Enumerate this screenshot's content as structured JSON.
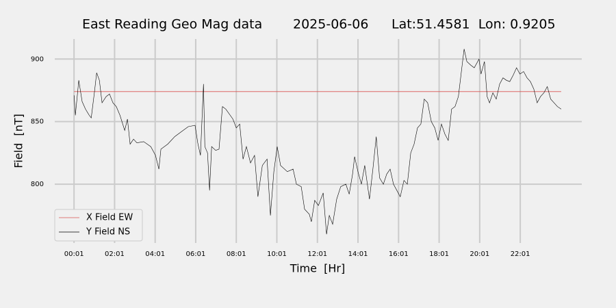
{
  "chart_data": {
    "type": "line",
    "title": "East Reading Geo Mag data",
    "date": "2025-06-06",
    "location": "Lat:51.4581  Lon: 0.9205",
    "xlabel": "Time  [Hr]",
    "ylabel": "Field  [nT]",
    "xlim": [
      -56,
      1503
    ],
    "ylim": [
      753,
      916
    ],
    "xticks": [
      {
        "value": 1,
        "label": "00:01"
      },
      {
        "value": 121,
        "label": "02:01"
      },
      {
        "value": 241,
        "label": "04:01"
      },
      {
        "value": 361,
        "label": "06:01"
      },
      {
        "value": 481,
        "label": "08:01"
      },
      {
        "value": 601,
        "label": "10:01"
      },
      {
        "value": 721,
        "label": "12:01"
      },
      {
        "value": 841,
        "label": "14:01"
      },
      {
        "value": 961,
        "label": "16:01"
      },
      {
        "value": 1081,
        "label": "18:01"
      },
      {
        "value": 1201,
        "label": "20:01"
      },
      {
        "value": 1321,
        "label": "22:01"
      }
    ],
    "yticks": [
      800,
      850,
      900
    ],
    "grid": true,
    "legend": "lower left",
    "series": [
      {
        "name": "X Field EW",
        "color": "#d9534f",
        "x": [
          1,
          1442
        ],
        "values": [
          874,
          874
        ]
      },
      {
        "name": "Y Field NS",
        "color": "#000000",
        "x": [
          1,
          5,
          15,
          25,
          35,
          46,
          52,
          62,
          68,
          76,
          84,
          96,
          106,
          116,
          126,
          137,
          151,
          159,
          167,
          177,
          187,
          207,
          228,
          242,
          252,
          258,
          278,
          299,
          319,
          339,
          359,
          367,
          375,
          384,
          388,
          396,
          402,
          408,
          420,
          430,
          440,
          450,
          471,
          481,
          491,
          501,
          511,
          523,
          535,
          545,
          558,
          572,
          582,
          592,
          602,
          612,
          632,
          649,
          659,
          673,
          683,
          697,
          703,
          713,
          724,
          738,
          748,
          756,
          766,
          778,
          790,
          805,
          815,
          825,
          831,
          841,
          851,
          861,
          875,
          885,
          895,
          905,
          916,
          926,
          936,
          946,
          956,
          966,
          977,
          987,
          997,
          1007,
          1017,
          1027,
          1037,
          1047,
          1058,
          1068,
          1078,
          1088,
          1098,
          1108,
          1118,
          1128,
          1138,
          1149,
          1155,
          1163,
          1175,
          1185,
          1199,
          1205,
          1215,
          1223,
          1230,
          1240,
          1250,
          1260,
          1270,
          1280,
          1290,
          1300,
          1310,
          1320,
          1331,
          1341,
          1351,
          1361,
          1371,
          1381,
          1391,
          1401,
          1411,
          1421,
          1431,
          1442
        ],
        "values": [
          871,
          855,
          883,
          866,
          860,
          855,
          853,
          875,
          889,
          883,
          865,
          870,
          872,
          865,
          862,
          855,
          843,
          852,
          832,
          836,
          833,
          834,
          830,
          823,
          812,
          828,
          832,
          838,
          842,
          846,
          847,
          833,
          823,
          880,
          830,
          825,
          795,
          830,
          827,
          828,
          862,
          860,
          852,
          845,
          848,
          820,
          830,
          817,
          823,
          790,
          815,
          820,
          775,
          810,
          830,
          815,
          810,
          812,
          800,
          798,
          780,
          776,
          770,
          787,
          783,
          793,
          760,
          775,
          768,
          788,
          798,
          800,
          792,
          808,
          822,
          810,
          800,
          815,
          788,
          812,
          838,
          805,
          800,
          808,
          812,
          800,
          795,
          790,
          803,
          800,
          825,
          832,
          845,
          848,
          868,
          865,
          850,
          845,
          835,
          848,
          840,
          835,
          860,
          862,
          870,
          895,
          908,
          898,
          895,
          893,
          900,
          888,
          898,
          870,
          865,
          873,
          868,
          880,
          885,
          883,
          882,
          887,
          893,
          888,
          890,
          885,
          882,
          876,
          865,
          870,
          873,
          878,
          868,
          865,
          862,
          860
        ]
      }
    ]
  }
}
